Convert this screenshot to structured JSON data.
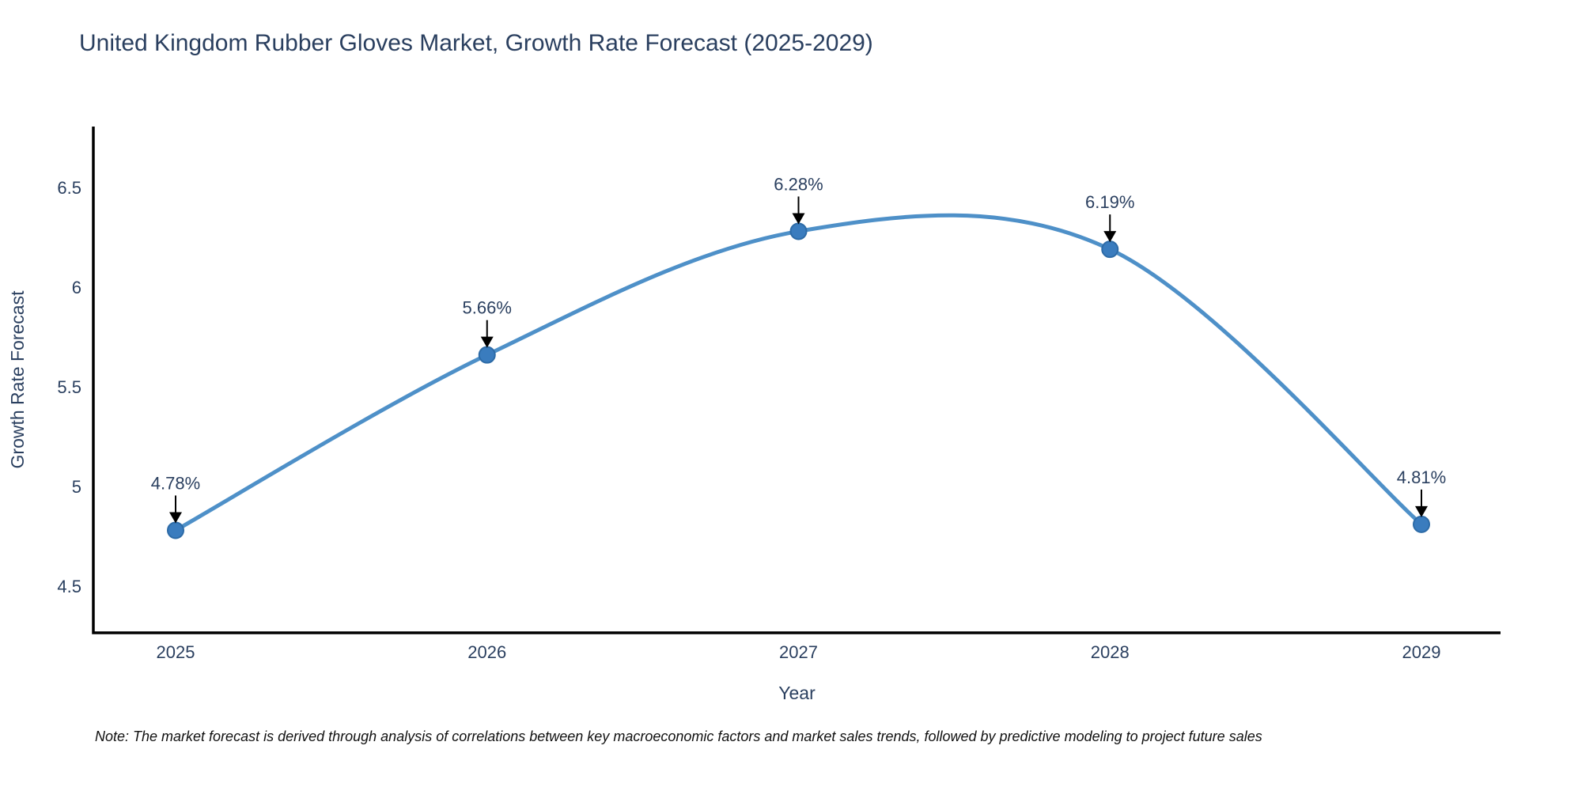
{
  "chart_data": {
    "type": "line",
    "title": "United Kingdom Rubber Gloves Market, Growth Rate Forecast (2025-2029)",
    "xlabel": "Year",
    "ylabel": "Growth Rate Forecast",
    "categories": [
      "2025",
      "2026",
      "2027",
      "2028",
      "2029"
    ],
    "x": [
      2025,
      2026,
      2027,
      2028,
      2029
    ],
    "values": [
      4.78,
      5.66,
      6.28,
      6.19,
      4.81
    ],
    "point_labels": [
      "4.78%",
      "5.66%",
      "6.28%",
      "6.19%",
      "4.81%"
    ],
    "ytick_labels": [
      "4.5",
      "5",
      "5.5",
      "6",
      "6.5"
    ],
    "yticks": [
      4.5,
      5.0,
      5.5,
      6.0,
      6.5
    ],
    "ylim": [
      4.25,
      6.8
    ],
    "line_shape": "spline",
    "grid": false,
    "legend_position": "none",
    "colors": {
      "line": "#4e90c8",
      "marker": "#3a7cbe",
      "marker_edge": "#2d6ba7",
      "axis": "#000000",
      "text": "#2a3f5f",
      "annotation_arrow": "#000000",
      "note_text": "#111111",
      "background": "#ffffff"
    }
  },
  "note": "Note: The market forecast is derived through analysis of correlations between key macroeconomic factors and market sales trends, followed by predictive modeling to project future sales"
}
